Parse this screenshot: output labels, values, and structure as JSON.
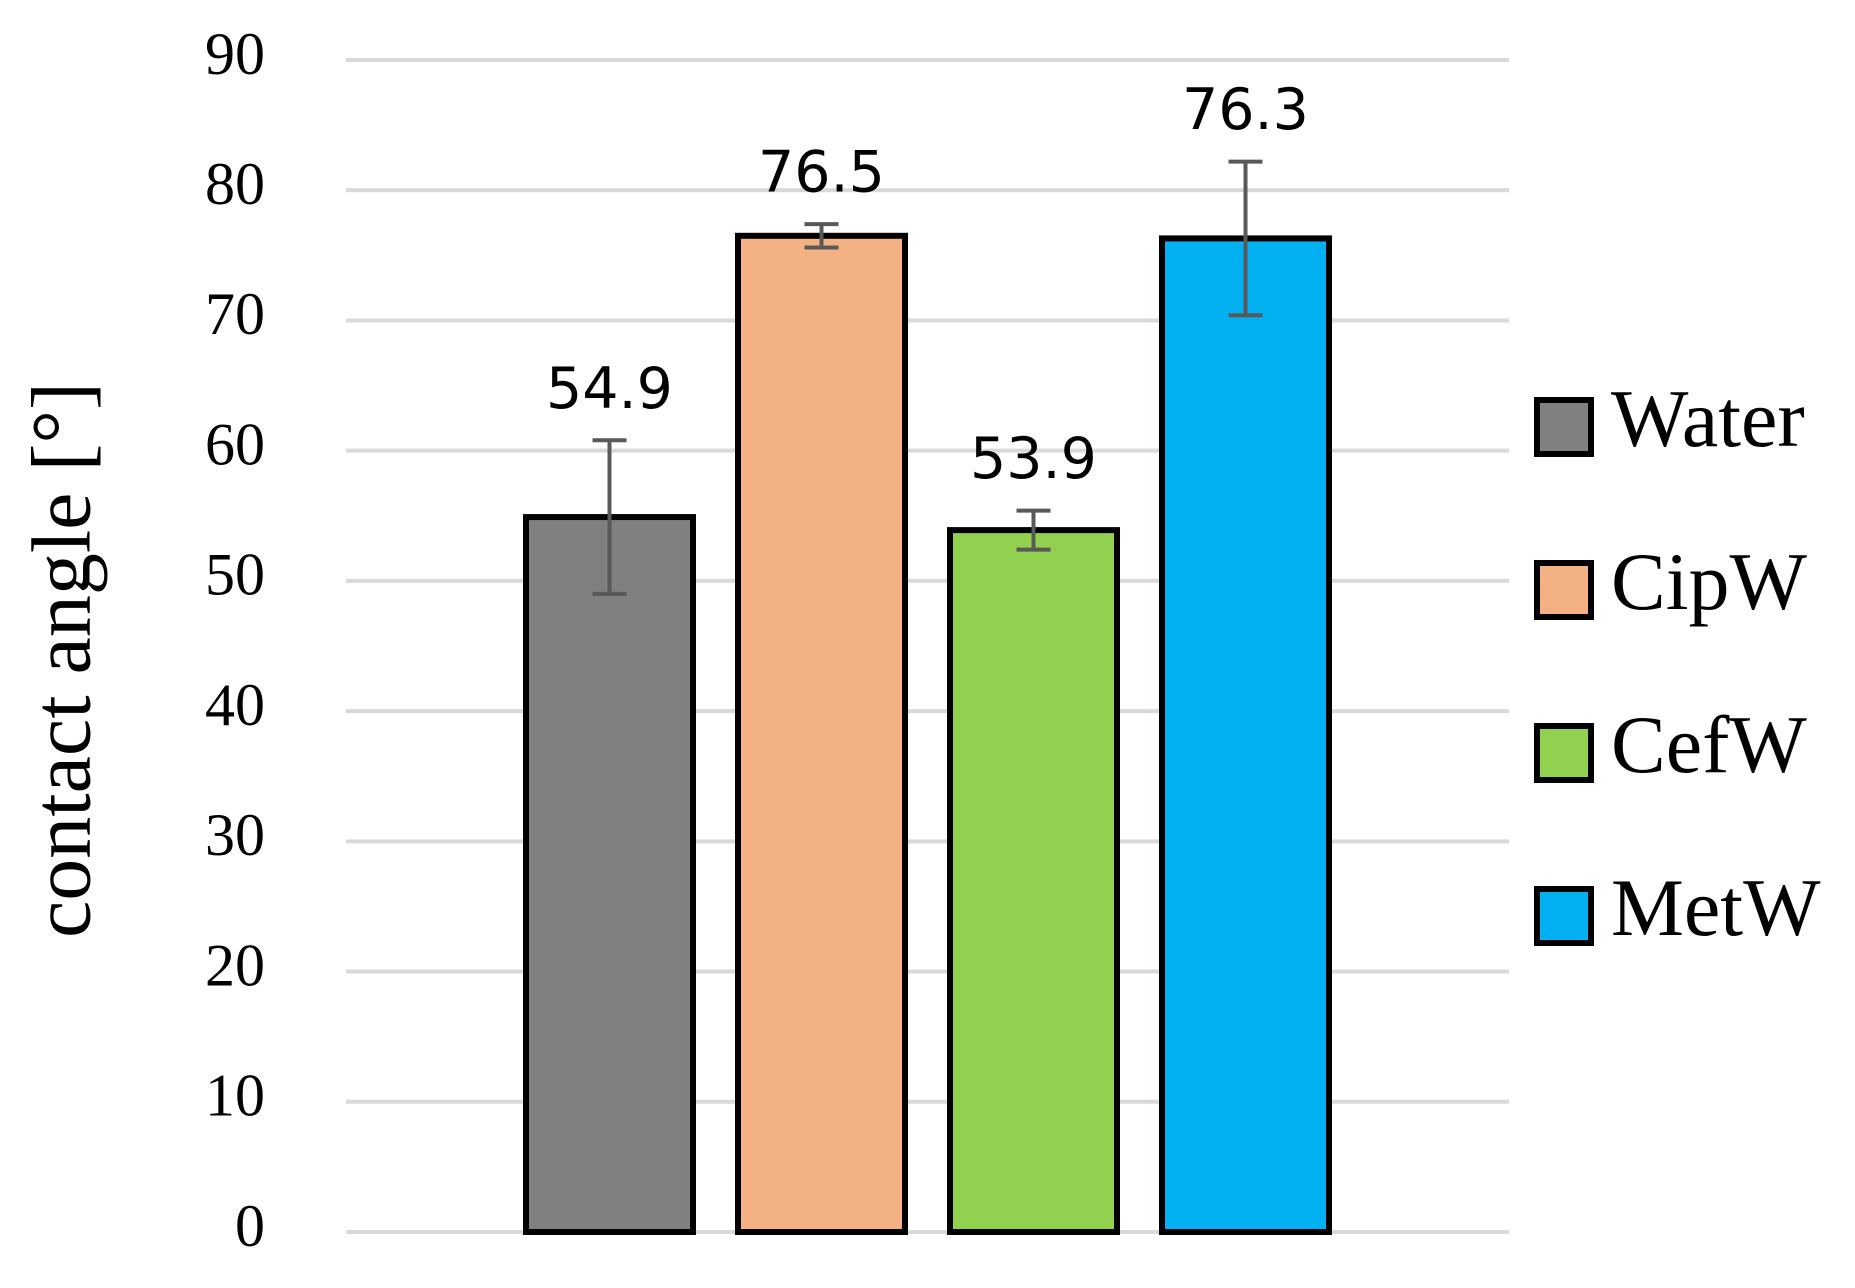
{
  "chart_data": {
    "type": "bar",
    "y_label": "contact angle [°]",
    "categories": [
      null
    ],
    "series": [
      {
        "name": "Water",
        "color": "#808080",
        "values": [
          54.9
        ],
        "errors": [
          5.9
        ]
      },
      {
        "name": "CipW",
        "color": "#f4b183",
        "values": [
          76.5
        ],
        "errors": [
          0.9
        ]
      },
      {
        "name": "CefW",
        "color": "#92d050",
        "values": [
          53.9
        ],
        "errors": [
          1.5
        ]
      },
      {
        "name": "MetW",
        "color": "#00b0f0",
        "values": [
          76.3
        ],
        "errors": [
          5.9
        ]
      }
    ],
    "ylim": [
      0,
      90
    ],
    "yticks": [
      0,
      10,
      20,
      30,
      40,
      50,
      60,
      70,
      80,
      90
    ],
    "grid": true,
    "legend": "right"
  }
}
